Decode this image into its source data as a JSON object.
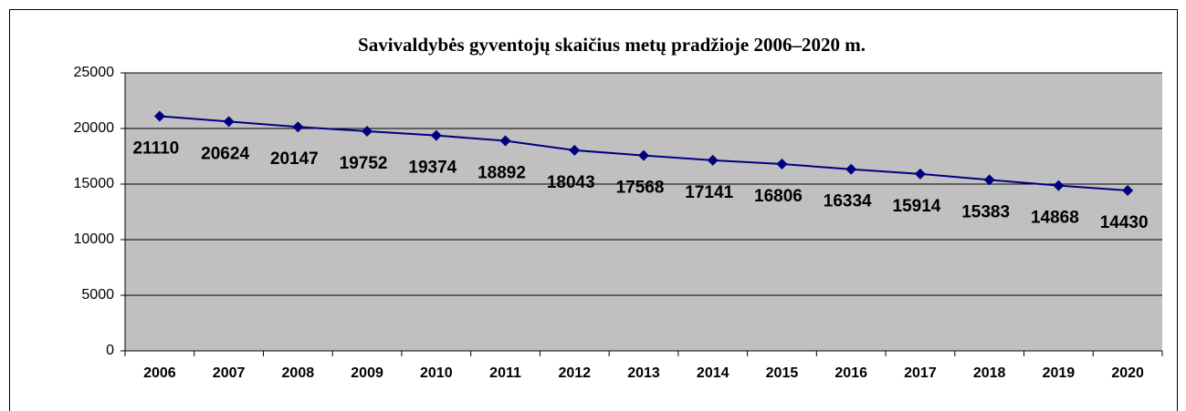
{
  "chart_data": {
    "type": "line",
    "title": "Savivaldybės gyventojų skaičius metų pradžioje 2006–2020 m.",
    "categories": [
      "2006",
      "2007",
      "2008",
      "2009",
      "2010",
      "2011",
      "2012",
      "2013",
      "2014",
      "2015",
      "2016",
      "2017",
      "2018",
      "2019",
      "2020"
    ],
    "values": [
      21110,
      20624,
      20147,
      19752,
      19374,
      18892,
      18043,
      17568,
      17141,
      16806,
      16334,
      15914,
      15383,
      14868,
      14430
    ],
    "color": "#000080",
    "ylim": [
      0,
      25000
    ],
    "yticks": [
      0,
      5000,
      10000,
      15000,
      20000,
      25000
    ],
    "grid": true
  }
}
